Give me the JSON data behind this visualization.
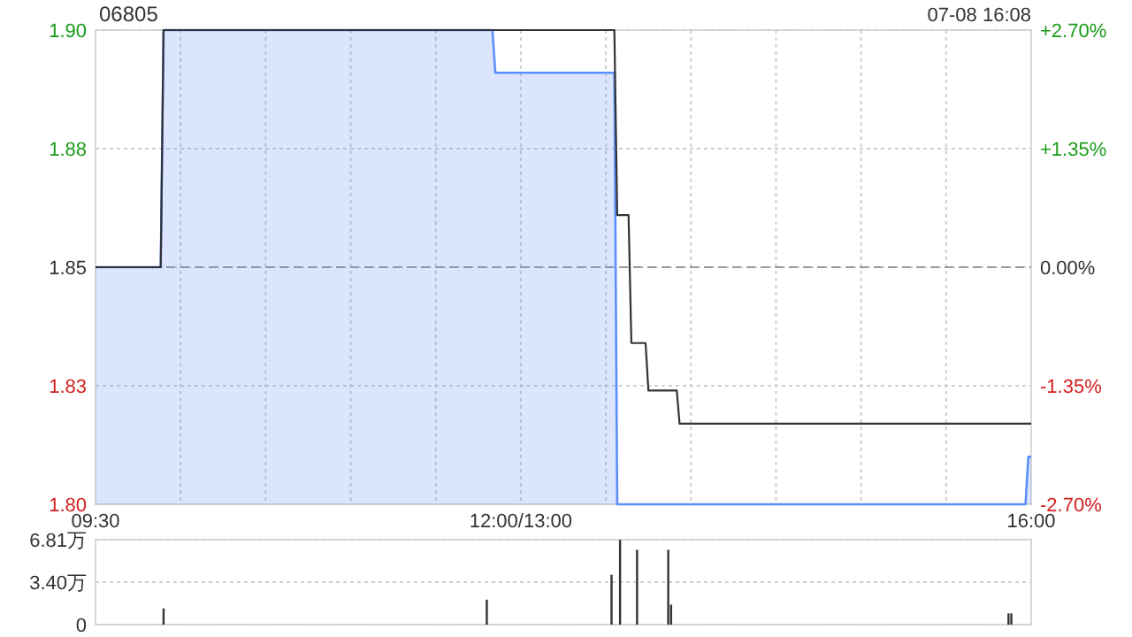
{
  "chart_data": [
    {
      "type": "line",
      "title": "06805",
      "subtitle": "07-08 16:08",
      "categories": [
        "09:30",
        null,
        null,
        null,
        null,
        null,
        null,
        null,
        null,
        null,
        null,
        null,
        null,
        null,
        null,
        null,
        null,
        null,
        null,
        null,
        null,
        null,
        null,
        null,
        null,
        null,
        null,
        null,
        null,
        null,
        null,
        null,
        null,
        null,
        null,
        null,
        null,
        null,
        null,
        null,
        null,
        null,
        null,
        null,
        null,
        null,
        null,
        null,
        null,
        null,
        null,
        null,
        null,
        null,
        null,
        null,
        null,
        null,
        null,
        null,
        null,
        null,
        null,
        null,
        null,
        null,
        null,
        null,
        null,
        null,
        null,
        null,
        null,
        null,
        null,
        null,
        null,
        null,
        null,
        null,
        null,
        null,
        null,
        null,
        null,
        null,
        null,
        null,
        null,
        null,
        null,
        null,
        null,
        null,
        null,
        null,
        null,
        null,
        null,
        null,
        null,
        null,
        null,
        null,
        null,
        null,
        null,
        null,
        null,
        null,
        null,
        null,
        null,
        null,
        null,
        null,
        null,
        null,
        null,
        null,
        null,
        null,
        null,
        null,
        null,
        null,
        null,
        null,
        null,
        null,
        null,
        null,
        null,
        null,
        null,
        null,
        null,
        null,
        null,
        null,
        null,
        null,
        null,
        null,
        null,
        null,
        null,
        null,
        null,
        null,
        "12:00/13:00",
        null,
        null,
        null,
        null,
        null,
        null,
        null,
        null,
        null,
        null,
        null,
        null,
        null,
        null,
        null,
        null,
        null,
        null,
        null,
        null,
        null,
        null,
        null,
        null,
        null,
        null,
        null,
        null,
        null,
        null,
        null,
        null,
        null,
        null,
        null,
        null,
        null,
        null,
        null,
        null,
        null,
        null,
        null,
        null,
        null,
        null,
        null,
        null,
        null,
        null,
        null,
        null,
        null,
        null,
        null,
        null,
        null,
        null,
        null,
        null,
        null,
        null,
        null,
        null,
        null,
        null,
        null,
        null,
        null,
        null,
        null,
        null,
        null,
        null,
        null,
        null,
        null,
        null,
        null,
        null,
        null,
        null,
        null,
        null,
        null,
        null,
        null,
        null,
        null,
        null,
        null,
        null,
        null,
        null,
        null,
        null,
        null,
        null,
        null,
        null,
        null,
        null,
        null,
        null,
        null,
        null,
        null,
        null,
        null,
        null,
        null,
        null,
        null,
        null,
        null,
        null,
        null,
        null,
        null,
        null,
        null,
        null,
        null,
        null,
        null,
        null,
        null,
        null,
        null,
        null,
        null,
        null,
        null,
        null,
        null,
        null,
        null,
        null,
        null,
        null,
        null,
        null,
        null,
        null,
        null,
        null,
        null,
        null,
        null,
        null,
        null,
        null,
        null,
        null,
        null,
        null,
        null,
        null,
        null,
        null,
        null,
        null,
        null,
        null,
        null,
        null,
        null,
        null,
        null,
        null,
        null,
        null,
        null,
        null,
        null,
        null,
        null,
        null,
        null,
        "16:00"
      ],
      "ylim": [
        1.8,
        1.9
      ],
      "yticks": [
        {
          "value": 1.8,
          "label": "1.80"
        },
        {
          "value": 1.825,
          "label": "1.83"
        },
        {
          "value": 1.85,
          "label": "1.85"
        },
        {
          "value": 1.875,
          "label": "1.88"
        },
        {
          "value": 1.9,
          "label": "1.90"
        }
      ],
      "y2lim": [
        -2.7,
        2.7
      ],
      "y2ticks": [
        {
          "value": -2.7,
          "label": "-2.70%"
        },
        {
          "value": -1.35,
          "label": "-1.35%"
        },
        {
          "value": 0,
          "label": "0.00%"
        },
        {
          "value": 1.35,
          "label": "+1.35%"
        },
        {
          "value": 2.7,
          "label": "+2.70%"
        }
      ],
      "grid": true,
      "ref_lines": [
        {
          "axis": "y",
          "value": 1.85,
          "line_style": "dashed"
        }
      ],
      "series": [
        {
          "type": "area",
          "color": "#5b8ff9",
          "values": [
            1.85,
            1.85,
            1.85,
            1.85,
            1.85,
            1.85,
            1.85,
            1.85,
            1.85,
            1.85,
            1.85,
            1.85,
            1.85,
            1.85,
            1.85,
            1.85,
            1.85,
            1.85,
            1.85,
            1.85,
            1.85,
            1.85,
            1.85,
            1.85,
            1.9,
            1.9,
            1.9,
            1.9,
            1.9,
            1.9,
            1.9,
            1.9,
            1.9,
            1.9,
            1.9,
            1.9,
            1.9,
            1.9,
            1.9,
            1.9,
            1.9,
            1.9,
            1.9,
            1.9,
            1.9,
            1.9,
            1.9,
            1.9,
            1.9,
            1.9,
            1.9,
            1.9,
            1.9,
            1.9,
            1.9,
            1.9,
            1.9,
            1.9,
            1.9,
            1.9,
            1.9,
            1.9,
            1.9,
            1.9,
            1.9,
            1.9,
            1.9,
            1.9,
            1.9,
            1.9,
            1.9,
            1.9,
            1.9,
            1.9,
            1.9,
            1.9,
            1.9,
            1.9,
            1.9,
            1.9,
            1.9,
            1.9,
            1.9,
            1.9,
            1.9,
            1.9,
            1.9,
            1.9,
            1.9,
            1.9,
            1.9,
            1.9,
            1.9,
            1.9,
            1.9,
            1.9,
            1.9,
            1.9,
            1.9,
            1.9,
            1.9,
            1.9,
            1.9,
            1.9,
            1.9,
            1.9,
            1.9,
            1.9,
            1.9,
            1.9,
            1.9,
            1.9,
            1.9,
            1.9,
            1.9,
            1.9,
            1.9,
            1.9,
            1.9,
            1.9,
            1.9,
            1.9,
            1.9,
            1.9,
            1.9,
            1.9,
            1.9,
            1.9,
            1.9,
            1.9,
            1.9,
            1.9,
            1.9,
            1.9,
            1.9,
            1.9,
            1.9,
            1.9,
            1.9,
            1.9,
            1.9,
            1.891,
            1.891,
            1.891,
            1.891,
            1.891,
            1.891,
            1.891,
            1.891,
            1.891,
            1.891,
            1.891,
            1.891,
            1.891,
            1.891,
            1.891,
            1.891,
            1.891,
            1.891,
            1.891,
            1.891,
            1.891,
            1.891,
            1.891,
            1.891,
            1.891,
            1.891,
            1.891,
            1.891,
            1.891,
            1.891,
            1.891,
            1.891,
            1.891,
            1.891,
            1.891,
            1.891,
            1.891,
            1.891,
            1.891,
            1.891,
            1.891,
            1.891,
            1.891,
            1.8,
            1.8,
            1.8,
            1.8,
            1.8,
            1.8,
            1.8,
            1.8,
            1.8,
            1.8,
            1.8,
            1.8,
            1.8,
            1.8,
            1.8,
            1.8,
            1.8,
            1.8,
            1.8,
            1.8,
            1.8,
            1.8,
            1.8,
            1.8,
            1.8,
            1.8,
            1.8,
            1.8,
            1.8,
            1.8,
            1.8,
            1.8,
            1.8,
            1.8,
            1.8,
            1.8,
            1.8,
            1.8,
            1.8,
            1.8,
            1.8,
            1.8,
            1.8,
            1.8,
            1.8,
            1.8,
            1.8,
            1.8,
            1.8,
            1.8,
            1.8,
            1.8,
            1.8,
            1.8,
            1.8,
            1.8,
            1.8,
            1.8,
            1.8,
            1.8,
            1.8,
            1.8,
            1.8,
            1.8,
            1.8,
            1.8,
            1.8,
            1.8,
            1.8,
            1.8,
            1.8,
            1.8,
            1.8,
            1.8,
            1.8,
            1.8,
            1.8,
            1.8,
            1.8,
            1.8,
            1.8,
            1.8,
            1.8,
            1.8,
            1.8,
            1.8,
            1.8,
            1.8,
            1.8,
            1.8,
            1.8,
            1.8,
            1.8,
            1.8,
            1.8,
            1.8,
            1.8,
            1.8,
            1.8,
            1.8,
            1.8,
            1.8,
            1.8,
            1.8,
            1.8,
            1.8,
            1.8,
            1.8,
            1.8,
            1.8,
            1.8,
            1.8,
            1.8,
            1.8,
            1.8,
            1.8,
            1.8,
            1.8,
            1.8,
            1.8,
            1.8,
            1.8,
            1.8,
            1.8,
            1.8,
            1.8,
            1.8,
            1.8,
            1.8,
            1.8,
            1.8,
            1.8,
            1.8,
            1.8,
            1.8,
            1.8,
            1.8,
            1.8,
            1.8,
            1.8,
            1.8,
            1.8,
            1.8,
            1.8,
            1.8,
            1.81,
            1.81
          ]
        },
        {
          "type": "line",
          "color": "#333333",
          "values": [
            1.85,
            1.85,
            1.85,
            1.85,
            1.85,
            1.85,
            1.85,
            1.85,
            1.85,
            1.85,
            1.85,
            1.85,
            1.85,
            1.85,
            1.85,
            1.85,
            1.85,
            1.85,
            1.85,
            1.85,
            1.85,
            1.85,
            1.85,
            1.85,
            1.9,
            1.9,
            1.9,
            1.9,
            1.9,
            1.9,
            1.9,
            1.9,
            1.9,
            1.9,
            1.9,
            1.9,
            1.9,
            1.9,
            1.9,
            1.9,
            1.9,
            1.9,
            1.9,
            1.9,
            1.9,
            1.9,
            1.9,
            1.9,
            1.9,
            1.9,
            1.9,
            1.9,
            1.9,
            1.9,
            1.9,
            1.9,
            1.9,
            1.9,
            1.9,
            1.9,
            1.9,
            1.9,
            1.9,
            1.9,
            1.9,
            1.9,
            1.9,
            1.9,
            1.9,
            1.9,
            1.9,
            1.9,
            1.9,
            1.9,
            1.9,
            1.9,
            1.9,
            1.9,
            1.9,
            1.9,
            1.9,
            1.9,
            1.9,
            1.9,
            1.9,
            1.9,
            1.9,
            1.9,
            1.9,
            1.9,
            1.9,
            1.9,
            1.9,
            1.9,
            1.9,
            1.9,
            1.9,
            1.9,
            1.9,
            1.9,
            1.9,
            1.9,
            1.9,
            1.9,
            1.9,
            1.9,
            1.9,
            1.9,
            1.9,
            1.9,
            1.9,
            1.9,
            1.9,
            1.9,
            1.9,
            1.9,
            1.9,
            1.9,
            1.9,
            1.9,
            1.9,
            1.9,
            1.9,
            1.9,
            1.9,
            1.9,
            1.9,
            1.9,
            1.9,
            1.9,
            1.9,
            1.9,
            1.9,
            1.9,
            1.9,
            1.9,
            1.9,
            1.9,
            1.9,
            1.9,
            1.9,
            1.9,
            1.9,
            1.9,
            1.9,
            1.9,
            1.9,
            1.9,
            1.9,
            1.9,
            1.9,
            1.9,
            1.9,
            1.9,
            1.9,
            1.9,
            1.9,
            1.9,
            1.9,
            1.9,
            1.9,
            1.9,
            1.9,
            1.9,
            1.9,
            1.9,
            1.9,
            1.9,
            1.9,
            1.9,
            1.9,
            1.9,
            1.9,
            1.9,
            1.9,
            1.9,
            1.9,
            1.9,
            1.9,
            1.9,
            1.9,
            1.9,
            1.9,
            1.9,
            1.861,
            1.861,
            1.861,
            1.861,
            1.861,
            1.834,
            1.834,
            1.834,
            1.834,
            1.834,
            1.834,
            1.824,
            1.824,
            1.824,
            1.824,
            1.824,
            1.824,
            1.824,
            1.824,
            1.824,
            1.824,
            1.824,
            1.817,
            1.817,
            1.817,
            1.817,
            1.817,
            1.817,
            1.817,
            1.817,
            1.817,
            1.817,
            1.817,
            1.817,
            1.817,
            1.817,
            1.817,
            1.817,
            1.817,
            1.817,
            1.817,
            1.817,
            1.817,
            1.817,
            1.817,
            1.817,
            1.817,
            1.817,
            1.817,
            1.817,
            1.817,
            1.817,
            1.817,
            1.817,
            1.817,
            1.817,
            1.817,
            1.817,
            1.817,
            1.817,
            1.817,
            1.817,
            1.817,
            1.817,
            1.817,
            1.817,
            1.817,
            1.817,
            1.817,
            1.817,
            1.817,
            1.817,
            1.817,
            1.817,
            1.817,
            1.817,
            1.817,
            1.817,
            1.817,
            1.817,
            1.817,
            1.817,
            1.817,
            1.817,
            1.817,
            1.817,
            1.817,
            1.817,
            1.817,
            1.817,
            1.817,
            1.817,
            1.817,
            1.817,
            1.817,
            1.817,
            1.817,
            1.817,
            1.817,
            1.817,
            1.817,
            1.817,
            1.817,
            1.817,
            1.817,
            1.817,
            1.817,
            1.817,
            1.817,
            1.817,
            1.817,
            1.817,
            1.817,
            1.817,
            1.817,
            1.817,
            1.817,
            1.817,
            1.817,
            1.817,
            1.817,
            1.817,
            1.817,
            1.817,
            1.817,
            1.817,
            1.817,
            1.817,
            1.817,
            1.817,
            1.817,
            1.817,
            1.817,
            1.817,
            1.817,
            1.817,
            1.817,
            1.817,
            1.817,
            1.817,
            1.817,
            1.817,
            1.817,
            1.817,
            1.817,
            1.817,
            1.817
          ]
        }
      ]
    },
    {
      "type": "bar",
      "color": "#333333",
      "categories": [
        null,
        null,
        null,
        null,
        null,
        null,
        null,
        null,
        null,
        null,
        null,
        null,
        null,
        null,
        null,
        null,
        null,
        null,
        null,
        null,
        null,
        null,
        null,
        null,
        null,
        null,
        null,
        null,
        null,
        null,
        null,
        null,
        null,
        null,
        null,
        null,
        null,
        null,
        null,
        null,
        null,
        null,
        null,
        null,
        null,
        null,
        null,
        null,
        null,
        null,
        null,
        null,
        null,
        null,
        null,
        null,
        null,
        null,
        null,
        null,
        null,
        null,
        null,
        null,
        null,
        null,
        null,
        null,
        null,
        null,
        null,
        null,
        null,
        null,
        null,
        null,
        null,
        null,
        null,
        null,
        null,
        null,
        null,
        null,
        null,
        null,
        null,
        null,
        null,
        null,
        null,
        null,
        null,
        null,
        null,
        null,
        null,
        null,
        null,
        null,
        null,
        null,
        null,
        null,
        null,
        null,
        null,
        null,
        null,
        null,
        null,
        null,
        null,
        null,
        null,
        null,
        null,
        null,
        null,
        null,
        null,
        null,
        null,
        null,
        null,
        null,
        null,
        null,
        null,
        null,
        null,
        null,
        null,
        null,
        null,
        null,
        null,
        null,
        null,
        null,
        null,
        null,
        null,
        null,
        null,
        null,
        null,
        null,
        null,
        null,
        null,
        null,
        null,
        null,
        null,
        null,
        null,
        null,
        null,
        null,
        null,
        null,
        null,
        null,
        null,
        null,
        null,
        null,
        null,
        null,
        null,
        null,
        null,
        null,
        null,
        null,
        null,
        null,
        null,
        null,
        null,
        null,
        null,
        null,
        null,
        null,
        null,
        null,
        null,
        null,
        null,
        null,
        null,
        null,
        null,
        null,
        null,
        null,
        null,
        null,
        null,
        null,
        null,
        null,
        null,
        null,
        null,
        null,
        null,
        null,
        null,
        null,
        null,
        null,
        null,
        null,
        null,
        null,
        null,
        null,
        null,
        null,
        null,
        null,
        null,
        null,
        null,
        null,
        null,
        null,
        null,
        null,
        null,
        null,
        null,
        null,
        null,
        null,
        null,
        null,
        null,
        null,
        null,
        null,
        null,
        null,
        null,
        null,
        null,
        null,
        null,
        null,
        null,
        null,
        null,
        null,
        null,
        null,
        null,
        null,
        null,
        null,
        null,
        null,
        null,
        null,
        null,
        null,
        null,
        null,
        null,
        null,
        null,
        null,
        null,
        null,
        null,
        null,
        null,
        null,
        null,
        null,
        null,
        null,
        null,
        null,
        null,
        null,
        null,
        null,
        null,
        null,
        null,
        null,
        null,
        null,
        null,
        null,
        null,
        null,
        null,
        null,
        null,
        null,
        null,
        null,
        null,
        null,
        null,
        null,
        null,
        null,
        null,
        null,
        null,
        null,
        null,
        null,
        null,
        null,
        null,
        null,
        null,
        null,
        null,
        null,
        null,
        null,
        null,
        null,
        null
      ],
      "values": [
        null,
        null,
        null,
        null,
        null,
        null,
        null,
        null,
        null,
        null,
        null,
        null,
        null,
        null,
        null,
        null,
        null,
        null,
        null,
        null,
        null,
        null,
        null,
        null,
        1.3,
        null,
        null,
        null,
        null,
        null,
        null,
        null,
        null,
        null,
        null,
        null,
        null,
        null,
        null,
        null,
        null,
        null,
        null,
        null,
        null,
        null,
        null,
        null,
        null,
        null,
        null,
        null,
        null,
        null,
        null,
        null,
        null,
        null,
        null,
        null,
        null,
        null,
        null,
        null,
        null,
        null,
        null,
        null,
        null,
        null,
        null,
        null,
        null,
        null,
        null,
        null,
        null,
        null,
        null,
        null,
        null,
        null,
        null,
        null,
        null,
        null,
        null,
        null,
        null,
        null,
        null,
        null,
        null,
        null,
        null,
        null,
        null,
        null,
        null,
        null,
        null,
        null,
        null,
        null,
        null,
        null,
        null,
        null,
        null,
        null,
        null,
        null,
        null,
        null,
        null,
        null,
        null,
        null,
        null,
        null,
        null,
        null,
        null,
        null,
        null,
        null,
        null,
        null,
        null,
        null,
        null,
        null,
        null,
        null,
        null,
        null,
        null,
        null,
        2.0,
        null,
        null,
        null,
        null,
        null,
        null,
        null,
        null,
        null,
        null,
        null,
        null,
        null,
        null,
        null,
        null,
        null,
        null,
        null,
        null,
        null,
        null,
        null,
        null,
        null,
        null,
        null,
        null,
        null,
        null,
        null,
        null,
        null,
        null,
        null,
        null,
        null,
        null,
        null,
        null,
        null,
        null,
        null,
        4.0,
        null,
        null,
        6.8,
        null,
        null,
        null,
        null,
        null,
        6.0,
        null,
        null,
        null,
        null,
        null,
        null,
        null,
        null,
        null,
        null,
        6.0,
        1.6,
        null,
        null,
        null,
        null,
        null,
        null,
        null,
        null,
        null,
        null,
        null,
        null,
        null,
        null,
        null,
        null,
        null,
        null,
        null,
        null,
        null,
        null,
        null,
        null,
        null,
        null,
        null,
        null,
        null,
        null,
        null,
        null,
        null,
        null,
        null,
        null,
        null,
        null,
        null,
        null,
        null,
        null,
        null,
        null,
        null,
        null,
        null,
        null,
        null,
        null,
        null,
        null,
        null,
        null,
        null,
        null,
        null,
        null,
        null,
        null,
        null,
        null,
        null,
        null,
        null,
        null,
        null,
        null,
        null,
        null,
        null,
        null,
        null,
        null,
        null,
        null,
        null,
        null,
        null,
        null,
        null,
        null,
        null,
        null,
        null,
        null,
        null,
        null,
        null,
        null,
        null,
        null,
        null,
        null,
        null,
        null,
        null,
        null,
        null,
        null,
        null,
        null,
        null,
        null,
        null,
        null,
        null,
        null,
        null,
        null,
        null,
        null,
        null,
        null,
        null,
        null,
        null,
        null,
        0.9,
        0.9,
        null,
        null,
        null,
        null,
        null,
        null,
        null
      ],
      "ylim": [
        0,
        6.81
      ],
      "yticks": [
        0,
        {
          "value": 3.405,
          "label": "3.40万"
        },
        {
          "value": 6.81,
          "label": "6.81万"
        }
      ],
      "grid": "y"
    }
  ]
}
